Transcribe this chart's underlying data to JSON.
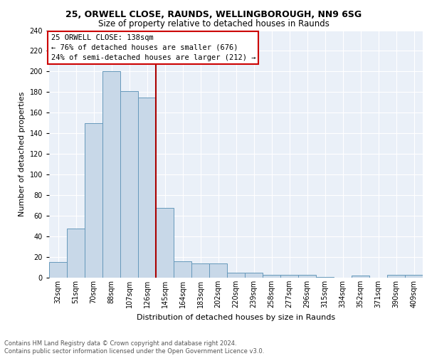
{
  "title1": "25, ORWELL CLOSE, RAUNDS, WELLINGBOROUGH, NN9 6SG",
  "title2": "Size of property relative to detached houses in Raunds",
  "xlabel": "Distribution of detached houses by size in Raunds",
  "ylabel": "Number of detached properties",
  "categories": [
    "32sqm",
    "51sqm",
    "70sqm",
    "88sqm",
    "107sqm",
    "126sqm",
    "145sqm",
    "164sqm",
    "183sqm",
    "202sqm",
    "220sqm",
    "239sqm",
    "258sqm",
    "277sqm",
    "296sqm",
    "315sqm",
    "334sqm",
    "352sqm",
    "371sqm",
    "390sqm",
    "409sqm"
  ],
  "values": [
    15,
    48,
    150,
    200,
    181,
    175,
    68,
    16,
    14,
    14,
    5,
    5,
    3,
    3,
    3,
    1,
    0,
    2,
    0,
    3,
    3
  ],
  "bar_color": "#c8d8e8",
  "bar_edge_color": "#6699bb",
  "vline_color": "#aa0000",
  "annotation_text_line1": "25 ORWELL CLOSE: 138sqm",
  "annotation_text_line2": "← 76% of detached houses are smaller (676)",
  "annotation_text_line3": "24% of semi-detached houses are larger (212) →",
  "annotation_box_color": "#ffffff",
  "annotation_box_edge_color": "#cc0000",
  "footer_text": "Contains HM Land Registry data © Crown copyright and database right 2024.\nContains public sector information licensed under the Open Government Licence v3.0.",
  "ylim": [
    0,
    240
  ],
  "yticks": [
    0,
    20,
    40,
    60,
    80,
    100,
    120,
    140,
    160,
    180,
    200,
    220,
    240
  ],
  "bg_color": "#eaf0f8",
  "fig_bg_color": "#ffffff",
  "title1_fontsize": 9,
  "title2_fontsize": 8.5,
  "ylabel_fontsize": 8,
  "xlabel_fontsize": 8,
  "tick_fontsize": 7,
  "footer_fontsize": 6,
  "annotation_fontsize": 7.5
}
